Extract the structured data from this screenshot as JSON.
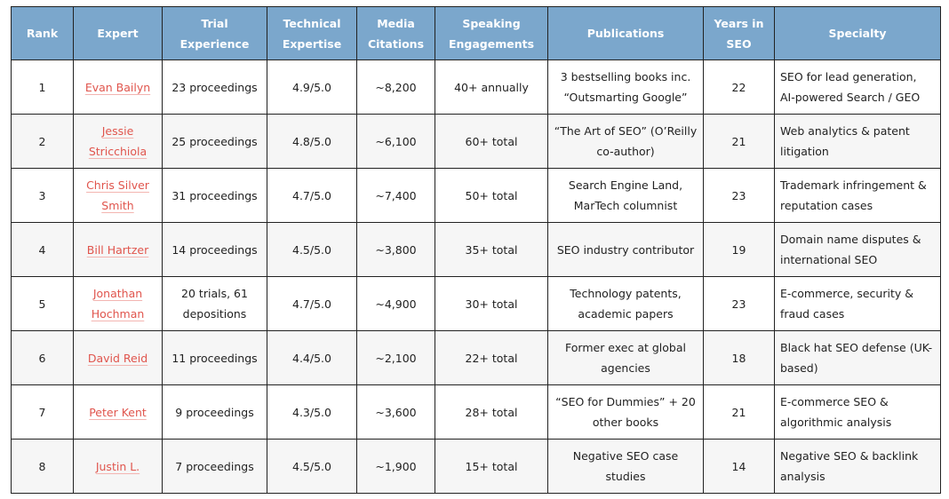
{
  "table": {
    "headers": [
      "Rank",
      "Expert",
      "Trial Experience",
      "Technical Expertise",
      "Media Citations",
      "Speaking Engagements",
      "Publications",
      "Years in SEO",
      "Specialty"
    ],
    "rows": [
      [
        "1",
        "Evan Bailyn",
        "23 proceedings",
        "4.9/5.0",
        "~8,200",
        "40+ annually",
        "3 bestselling books inc. “Outsmarting Google”",
        "22",
        "SEO for lead generation, AI-powered Search / GEO"
      ],
      [
        "2",
        "Jessie Stricchiola",
        "25 proceedings",
        "4.8/5.0",
        "~6,100",
        "60+ total",
        "“The Art of SEO” (O’Reilly co-author)",
        "21",
        "Web analytics & patent litigation"
      ],
      [
        "3",
        "Chris Silver Smith",
        "31 proceedings",
        "4.7/5.0",
        "~7,400",
        "50+ total",
        "Search Engine Land, MarTech columnist",
        "23",
        "Trademark infringement & reputation cases"
      ],
      [
        "4",
        "Bill Hartzer",
        "14 proceedings",
        "4.5/5.0",
        "~3,800",
        "35+ total",
        "SEO industry contributor",
        "19",
        "Domain name disputes & international SEO"
      ],
      [
        "5",
        "Jonathan Hochman",
        "20 trials, 61 depositions",
        "4.7/5.0",
        "~4,900",
        "30+ total",
        "Technology patents, academic papers",
        "23",
        "E-commerce, security & fraud cases"
      ],
      [
        "6",
        "David Reid",
        "11 proceedings",
        "4.4/5.0",
        "~2,100",
        "22+ total",
        "Former exec at global agencies",
        "18",
        "Black hat SEO defense (UK-based)"
      ],
      [
        "7",
        "Peter Kent",
        "9 proceedings",
        "4.3/5.0",
        "~3,600",
        "28+ total",
        "“SEO for Dummies” + 20 other books",
        "21",
        "E-commerce SEO & algorithmic analysis"
      ],
      [
        "8",
        "Justin L.",
        "7 proceedings",
        "4.5/5.0",
        "~1,900",
        "15+ total",
        "Negative SEO case studies",
        "14",
        "Negative SEO & backlink analysis"
      ]
    ]
  }
}
